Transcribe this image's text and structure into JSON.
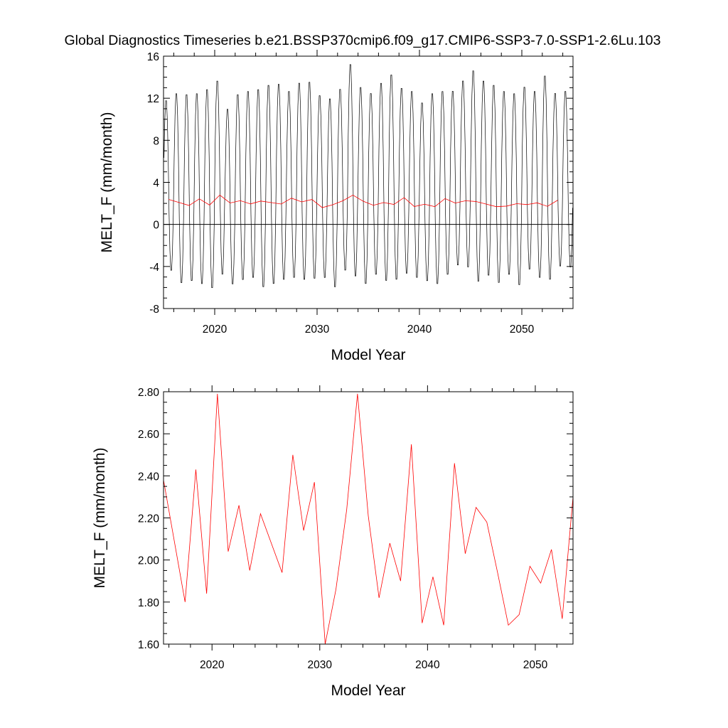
{
  "title": "Global Diagnostics Timeseries b.e21.BSSP370cmip6.f09_g17.CMIP6-SSP3-7.0-SSP1-2.6Lu.103",
  "colors": {
    "monthly": "#000000",
    "annual": "#ff0000",
    "axis": "#000000"
  },
  "chart_data": [
    {
      "type": "line",
      "xlabel": "Model Year",
      "ylabel": "MELT_F (mm/month)",
      "xlim": [
        2015,
        2055
      ],
      "ylim": [
        -8,
        16
      ],
      "x_ticks": [
        2020,
        2030,
        2040,
        2050
      ],
      "y_ticks": [
        -8,
        -4,
        0,
        4,
        8,
        12,
        16
      ],
      "zero_line": true,
      "monthly_series": {
        "start_year": 2015,
        "months_per_year": 12,
        "annual_maxima": [
          12.0,
          12.7,
          12.6,
          12.7,
          13.1,
          13.9,
          11.2,
          12.6,
          12.9,
          13.1,
          13.5,
          13.6,
          12.9,
          13.7,
          13.8,
          12.5,
          12.2,
          13.1,
          15.5,
          13.3,
          12.7,
          13.7,
          14.5,
          13.2,
          12.9,
          11.8,
          12.7,
          12.9,
          12.9,
          13.9,
          14.9,
          13.9,
          13.5,
          12.9,
          12.7,
          13.3,
          12.9,
          14.4,
          12.7,
          12.9
        ],
        "annual_minima": [
          -4.6,
          -5.8,
          -5.6,
          -5.9,
          -6.3,
          -5.0,
          -5.9,
          -5.5,
          -5.3,
          -6.2,
          -5.9,
          -5.5,
          -5.3,
          -5.5,
          -5.4,
          -5.3,
          -6.2,
          -4.6,
          -5.2,
          -5.9,
          -5.0,
          -5.6,
          -5.5,
          -4.9,
          -5.3,
          -5.6,
          -5.9,
          -5.0,
          -4.1,
          -4.3,
          -5.7,
          -5.1,
          -5.8,
          -5.0,
          -6.0,
          -4.5,
          -5.3,
          -5.5,
          -4.2,
          -4.3
        ]
      },
      "series": [
        {
          "x": [
            2015.5,
            2016.5,
            2017.5,
            2018.5,
            2019.5,
            2020.5,
            2021.5,
            2022.5,
            2023.5,
            2024.5,
            2025.5,
            2026.5,
            2027.5,
            2028.5,
            2029.5,
            2030.5,
            2031.5,
            2032.5,
            2033.5,
            2034.5,
            2035.5,
            2036.5,
            2037.5,
            2038.5,
            2039.5,
            2040.5,
            2041.5,
            2042.5,
            2043.5,
            2044.5,
            2045.5,
            2046.5,
            2047.5,
            2048.5,
            2049.5,
            2050.5,
            2051.5,
            2052.5,
            2053.5
          ],
          "values": [
            2.38,
            2.09,
            1.8,
            2.43,
            1.84,
            2.79,
            2.04,
            2.26,
            1.95,
            2.22,
            2.08,
            1.94,
            2.5,
            2.14,
            2.37,
            1.6,
            1.86,
            2.24,
            2.79,
            2.21,
            1.82,
            2.08,
            1.9,
            2.55,
            1.7,
            1.92,
            1.69,
            2.46,
            2.03,
            2.25,
            2.18,
            1.94,
            1.69,
            1.74,
            1.97,
            1.89,
            2.05,
            1.72,
            2.3
          ]
        }
      ]
    },
    {
      "type": "line",
      "xlabel": "Model Year",
      "ylabel": "MELT_F (mm/month)",
      "xlim": [
        2015.5,
        2053.5
      ],
      "ylim": [
        1.6,
        2.8
      ],
      "x_ticks": [
        2020,
        2030,
        2040,
        2050
      ],
      "y_ticks": [
        1.6,
        1.8,
        2.0,
        2.2,
        2.4,
        2.6,
        2.8
      ],
      "y_tick_labels": [
        "1.60",
        "1.80",
        "2.00",
        "2.20",
        "2.40",
        "2.60",
        "2.80"
      ],
      "series": [
        {
          "x": [
            2015.5,
            2016.5,
            2017.5,
            2018.5,
            2019.5,
            2020.5,
            2021.5,
            2022.5,
            2023.5,
            2024.5,
            2025.5,
            2026.5,
            2027.5,
            2028.5,
            2029.5,
            2030.5,
            2031.5,
            2032.5,
            2033.5,
            2034.5,
            2035.5,
            2036.5,
            2037.5,
            2038.5,
            2039.5,
            2040.5,
            2041.5,
            2042.5,
            2043.5,
            2044.5,
            2045.5,
            2046.5,
            2047.5,
            2048.5,
            2049.5,
            2050.5,
            2051.5,
            2052.5,
            2053.5
          ],
          "values": [
            2.38,
            2.09,
            1.8,
            2.43,
            1.84,
            2.79,
            2.04,
            2.26,
            1.95,
            2.22,
            2.08,
            1.94,
            2.5,
            2.14,
            2.37,
            1.6,
            1.86,
            2.24,
            2.79,
            2.21,
            1.82,
            2.08,
            1.9,
            2.55,
            1.7,
            1.92,
            1.69,
            2.46,
            2.03,
            2.25,
            2.18,
            1.94,
            1.69,
            1.74,
            1.97,
            1.89,
            2.05,
            1.72,
            2.3
          ]
        }
      ]
    }
  ]
}
